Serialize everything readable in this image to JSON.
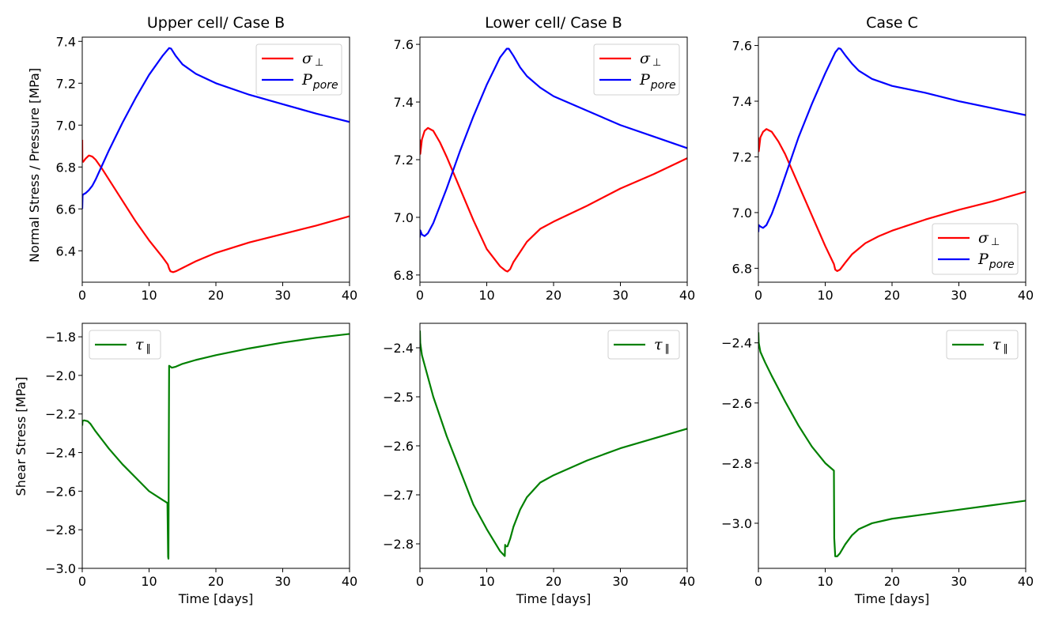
{
  "figure": {
    "x_axis_label": "Time [days]",
    "top_row_y_label": "Normal Stress / Pressure [MPa]",
    "bottom_row_y_label": "Shear Stress [MPa]"
  },
  "colors": {
    "sigma": "#ff0000",
    "pore": "#0000ff",
    "tau": "#008000"
  },
  "chart_data": [
    {
      "type": "line",
      "panel": "top-left",
      "title": "Upper cell/ Case B",
      "xlabel": "",
      "ylabel": "Normal Stress / Pressure [MPa]",
      "xlim": [
        0,
        40
      ],
      "ylim": [
        6.25,
        7.42
      ],
      "xticks": [
        0,
        10,
        20,
        30,
        40
      ],
      "xtick_labels": [
        "0",
        "10",
        "20",
        "30",
        "40"
      ],
      "yticks": [
        6.4,
        6.6,
        6.8,
        7.0,
        7.2,
        7.4
      ],
      "ytick_labels": [
        "6.4",
        "6.6",
        "6.8",
        "7.0",
        "7.2",
        "7.4"
      ],
      "grid": false,
      "legend": "top-right",
      "series": [
        {
          "name": "σ⊥",
          "legend_main": "σ",
          "legend_sub": "⊥",
          "color_key": "sigma",
          "x": [
            0,
            0.02,
            0.15,
            0.5,
            1,
            1.5,
            2,
            3,
            4,
            6,
            8,
            10,
            12,
            12.8,
            13.0,
            13.2,
            13.6,
            14,
            15,
            17,
            20,
            25,
            30,
            35,
            40
          ],
          "y": [
            6.93,
            6.83,
            6.825,
            6.84,
            6.855,
            6.85,
            6.835,
            6.79,
            6.74,
            6.64,
            6.54,
            6.45,
            6.37,
            6.335,
            6.315,
            6.302,
            6.298,
            6.302,
            6.318,
            6.35,
            6.39,
            6.44,
            6.48,
            6.52,
            6.565
          ]
        },
        {
          "name": "Ppore",
          "legend_main": "P",
          "legend_sub": "pore",
          "color_key": "pore",
          "x": [
            0,
            0.05,
            0.2,
            0.5,
            1,
            1.5,
            2,
            3,
            4,
            6,
            8,
            10,
            12,
            13,
            13.3,
            14,
            15,
            17,
            20,
            25,
            30,
            35,
            40
          ],
          "y": [
            6.6,
            6.665,
            6.67,
            6.675,
            6.69,
            6.71,
            6.74,
            6.81,
            6.88,
            7.01,
            7.13,
            7.24,
            7.33,
            7.368,
            7.365,
            7.33,
            7.29,
            7.245,
            7.2,
            7.145,
            7.1,
            7.055,
            7.015
          ]
        }
      ]
    },
    {
      "type": "line",
      "panel": "top-middle",
      "title": "Lower cell/ Case B",
      "xlabel": "",
      "ylabel": "",
      "xlim": [
        0,
        40
      ],
      "ylim": [
        6.775,
        7.625
      ],
      "xticks": [
        0,
        10,
        20,
        30,
        40
      ],
      "xtick_labels": [
        "0",
        "10",
        "20",
        "30",
        "40"
      ],
      "yticks": [
        6.8,
        7.0,
        7.2,
        7.4,
        7.6
      ],
      "ytick_labels": [
        "6.8",
        "7.0",
        "7.2",
        "7.4",
        "7.6"
      ],
      "grid": false,
      "legend": "top-right",
      "series": [
        {
          "name": "σ⊥",
          "legend_main": "σ",
          "legend_sub": "⊥",
          "color_key": "sigma",
          "x": [
            0,
            0.05,
            0.3,
            0.7,
            1.2,
            2,
            3,
            4,
            6,
            8,
            10,
            12,
            12.8,
            13.1,
            13.5,
            14,
            15,
            16,
            18,
            20,
            25,
            30,
            35,
            40
          ],
          "y": [
            7.27,
            7.22,
            7.27,
            7.3,
            7.31,
            7.3,
            7.26,
            7.21,
            7.1,
            6.99,
            6.89,
            6.83,
            6.815,
            6.812,
            6.82,
            6.845,
            6.88,
            6.915,
            6.96,
            6.985,
            7.04,
            7.1,
            7.15,
            7.205
          ]
        },
        {
          "name": "Ppore",
          "legend_main": "P",
          "legend_sub": "pore",
          "color_key": "pore",
          "x": [
            0,
            0.05,
            0.3,
            0.7,
            1.2,
            2,
            3,
            4,
            6,
            8,
            10,
            12,
            13,
            13.3,
            14,
            15,
            16,
            18,
            20,
            25,
            30,
            35,
            40
          ],
          "y": [
            6.93,
            6.955,
            6.94,
            6.935,
            6.945,
            6.98,
            7.04,
            7.1,
            7.23,
            7.35,
            7.46,
            7.555,
            7.585,
            7.585,
            7.56,
            7.52,
            7.49,
            7.45,
            7.42,
            7.37,
            7.32,
            7.28,
            7.24
          ]
        }
      ]
    },
    {
      "type": "line",
      "panel": "top-right",
      "title": "Case C",
      "xlabel": "",
      "ylabel": "",
      "xlim": [
        0,
        40
      ],
      "ylim": [
        6.75,
        7.63
      ],
      "xticks": [
        0,
        10,
        20,
        30,
        40
      ],
      "xtick_labels": [
        "0",
        "10",
        "20",
        "30",
        "40"
      ],
      "yticks": [
        6.8,
        7.0,
        7.2,
        7.4,
        7.6
      ],
      "ytick_labels": [
        "6.8",
        "7.0",
        "7.2",
        "7.4",
        "7.6"
      ],
      "grid": false,
      "legend": "bottom-right",
      "series": [
        {
          "name": "σ⊥",
          "legend_main": "σ",
          "legend_sub": "⊥",
          "color_key": "sigma",
          "x": [
            0,
            0.05,
            0.3,
            0.7,
            1.2,
            2,
            3,
            4,
            6,
            8,
            10,
            11.3,
            11.5,
            11.8,
            12.2,
            13,
            14,
            16,
            18,
            20,
            25,
            30,
            35,
            40
          ],
          "y": [
            7.27,
            7.22,
            7.27,
            7.29,
            7.3,
            7.29,
            7.255,
            7.21,
            7.1,
            6.99,
            6.88,
            6.815,
            6.795,
            6.79,
            6.795,
            6.82,
            6.85,
            6.89,
            6.915,
            6.935,
            6.975,
            7.01,
            7.04,
            7.075
          ]
        },
        {
          "name": "Ppore",
          "legend_main": "P",
          "legend_sub": "pore",
          "color_key": "pore",
          "x": [
            0,
            0.05,
            0.3,
            0.7,
            1.2,
            2,
            3,
            4,
            6,
            8,
            10,
            11.5,
            12,
            12.3,
            13,
            14,
            15,
            17,
            20,
            25,
            30,
            35,
            40
          ],
          "y": [
            6.93,
            6.955,
            6.95,
            6.945,
            6.955,
            6.995,
            7.06,
            7.13,
            7.27,
            7.39,
            7.5,
            7.575,
            7.59,
            7.588,
            7.565,
            7.535,
            7.51,
            7.48,
            7.455,
            7.43,
            7.4,
            7.375,
            7.35
          ]
        }
      ]
    },
    {
      "type": "line",
      "panel": "bottom-left",
      "title": "",
      "xlabel": "Time [days]",
      "ylabel": "Shear Stress [MPa]",
      "xlim": [
        0,
        40
      ],
      "ylim": [
        -3.0,
        -1.73
      ],
      "xticks": [
        0,
        10,
        20,
        30,
        40
      ],
      "xtick_labels": [
        "0",
        "10",
        "20",
        "30",
        "40"
      ],
      "yticks": [
        -3.0,
        -2.8,
        -2.6,
        -2.4,
        -2.2,
        -2.0,
        -1.8
      ],
      "ytick_labels": [
        "−3.0",
        "−2.8",
        "−2.6",
        "−2.4",
        "−2.2",
        "−2.0",
        "−1.8"
      ],
      "grid": false,
      "legend": "top-left",
      "series": [
        {
          "name": "τ∥",
          "legend_main": "τ",
          "legend_sub": "∥",
          "color_key": "tau",
          "x": [
            0,
            0.05,
            0.3,
            0.8,
            1.2,
            2,
            4,
            6,
            8,
            10,
            12,
            12.7,
            12.75,
            12.85,
            12.9,
            12.95,
            13.0,
            13.4,
            14,
            15,
            17,
            20,
            25,
            30,
            35,
            40
          ],
          "y": [
            -2.26,
            -2.235,
            -2.233,
            -2.237,
            -2.25,
            -2.29,
            -2.38,
            -2.46,
            -2.53,
            -2.6,
            -2.645,
            -2.66,
            -2.66,
            -2.94,
            -2.95,
            -2.4,
            -1.95,
            -1.96,
            -1.955,
            -1.94,
            -1.92,
            -1.895,
            -1.86,
            -1.83,
            -1.805,
            -1.785
          ]
        }
      ]
    },
    {
      "type": "line",
      "panel": "bottom-middle",
      "title": "",
      "xlabel": "Time [days]",
      "ylabel": "",
      "xlim": [
        0,
        40
      ],
      "ylim": [
        -2.85,
        -2.35
      ],
      "xticks": [
        0,
        10,
        20,
        30,
        40
      ],
      "xtick_labels": [
        "0",
        "10",
        "20",
        "30",
        "40"
      ],
      "yticks": [
        -2.8,
        -2.7,
        -2.6,
        -2.5,
        -2.4
      ],
      "ytick_labels": [
        "−2.8",
        "−2.7",
        "−2.6",
        "−2.5",
        "−2.4"
      ],
      "grid": false,
      "legend": "top-right",
      "series": [
        {
          "name": "τ∥",
          "legend_main": "τ",
          "legend_sub": "∥",
          "color_key": "tau",
          "x": [
            0,
            0.05,
            0.3,
            1,
            2,
            4,
            6,
            8,
            10,
            12,
            12.7,
            12.75,
            12.8,
            13.1,
            13.5,
            14,
            15,
            16,
            18,
            20,
            25,
            30,
            35,
            40
          ],
          "y": [
            -2.365,
            -2.39,
            -2.415,
            -2.45,
            -2.5,
            -2.58,
            -2.65,
            -2.72,
            -2.77,
            -2.815,
            -2.825,
            -2.802,
            -2.805,
            -2.805,
            -2.79,
            -2.765,
            -2.73,
            -2.705,
            -2.675,
            -2.66,
            -2.63,
            -2.605,
            -2.585,
            -2.565
          ]
        }
      ]
    },
    {
      "type": "line",
      "panel": "bottom-right",
      "title": "",
      "xlabel": "Time [days]",
      "ylabel": "",
      "xlim": [
        0,
        40
      ],
      "ylim": [
        -3.15,
        -2.335
      ],
      "xticks": [
        0,
        10,
        20,
        30,
        40
      ],
      "xtick_labels": [
        "0",
        "10",
        "20",
        "30",
        "40"
      ],
      "yticks": [
        -3.0,
        -2.8,
        -2.6,
        -2.4
      ],
      "ytick_labels": [
        "−3.0",
        "−2.8",
        "−2.6",
        "−2.4"
      ],
      "grid": false,
      "legend": "top-right",
      "series": [
        {
          "name": "τ∥",
          "legend_main": "τ",
          "legend_sub": "∥",
          "color_key": "tau",
          "x": [
            0,
            0.05,
            0.3,
            1,
            2,
            4,
            6,
            8,
            10,
            11.3,
            11.35,
            11.5,
            11.8,
            12.2,
            13,
            14,
            15,
            17,
            20,
            25,
            30,
            35,
            40
          ],
          "y": [
            -2.365,
            -2.4,
            -2.43,
            -2.465,
            -2.51,
            -2.595,
            -2.675,
            -2.745,
            -2.8,
            -2.825,
            -3.05,
            -3.11,
            -3.11,
            -3.1,
            -3.07,
            -3.04,
            -3.02,
            -3.0,
            -2.985,
            -2.97,
            -2.955,
            -2.94,
            -2.925
          ]
        }
      ]
    }
  ]
}
